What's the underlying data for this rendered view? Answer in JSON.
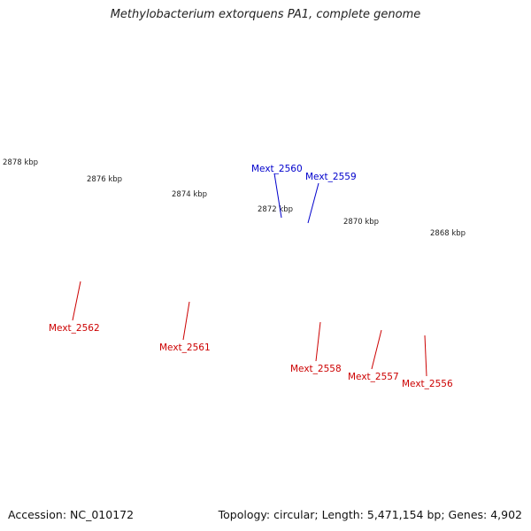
{
  "title": "Methylobacterium extorquens PA1, complete genome",
  "footer": {
    "accession": "Accession: NC_010172",
    "summary": "Topology: circular; Length: 5,471,154 bp; Genes: 4,902"
  },
  "colors": {
    "red": "#ee1111",
    "blue": "#1111ee",
    "gray": "#666666",
    "green": "#33cc33",
    "purple": "#6655cc",
    "tick": "#117711",
    "backbone": "#808080",
    "red_label": "#cc0000",
    "blue_label": "#0000cc"
  },
  "scale_labels": [
    "2878 kbp",
    "2876 kbp",
    "2874 kbp",
    "2872 kbp",
    "2870 kbp",
    "2868 kbp"
  ],
  "gene_labels": [
    {
      "name": "Mext_2560",
      "color": "blue"
    },
    {
      "name": "Mext_2559",
      "color": "blue"
    },
    {
      "name": "Mext_2562",
      "color": "red"
    },
    {
      "name": "Mext_2561",
      "color": "red"
    },
    {
      "name": "Mext_2558",
      "color": "red"
    },
    {
      "name": "Mext_2557",
      "color": "red"
    },
    {
      "name": "Mext_2556",
      "color": "red"
    }
  ]
}
